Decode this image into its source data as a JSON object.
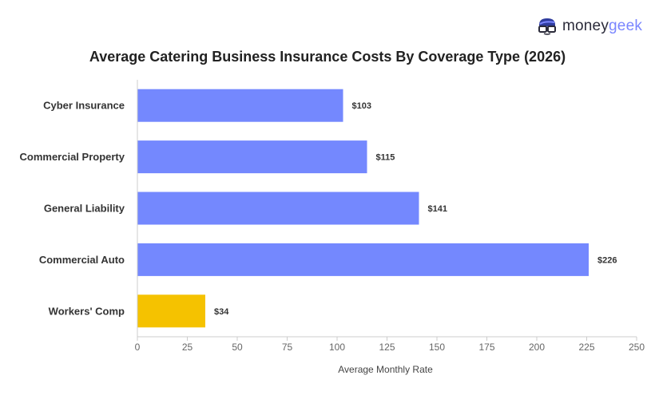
{
  "logo": {
    "money": "money",
    "geek": "geek",
    "icon": "nerd-glasses-icon"
  },
  "colors": {
    "default_bar": "#7488fe",
    "highlight_bar": "#f5c200",
    "axis": "#cccccc"
  },
  "chart_data": {
    "type": "bar",
    "orientation": "horizontal",
    "title": "Average Catering Business Insurance Costs By Coverage Type (2026)",
    "xlabel": "Average Monthly Rate",
    "ylabel": "",
    "categories": [
      "Cyber Insurance",
      "Commercial Property",
      "General Liability",
      "Commercial Auto",
      "Workers' Comp"
    ],
    "values": [
      103,
      115,
      141,
      226,
      34
    ],
    "value_labels": [
      "$103",
      "$115",
      "$141",
      "$226",
      "$34"
    ],
    "highlight_index": 4,
    "xlim": [
      0,
      250
    ],
    "xticks": [
      0,
      25,
      50,
      75,
      100,
      125,
      150,
      175,
      200,
      225,
      250
    ],
    "grid": false
  }
}
